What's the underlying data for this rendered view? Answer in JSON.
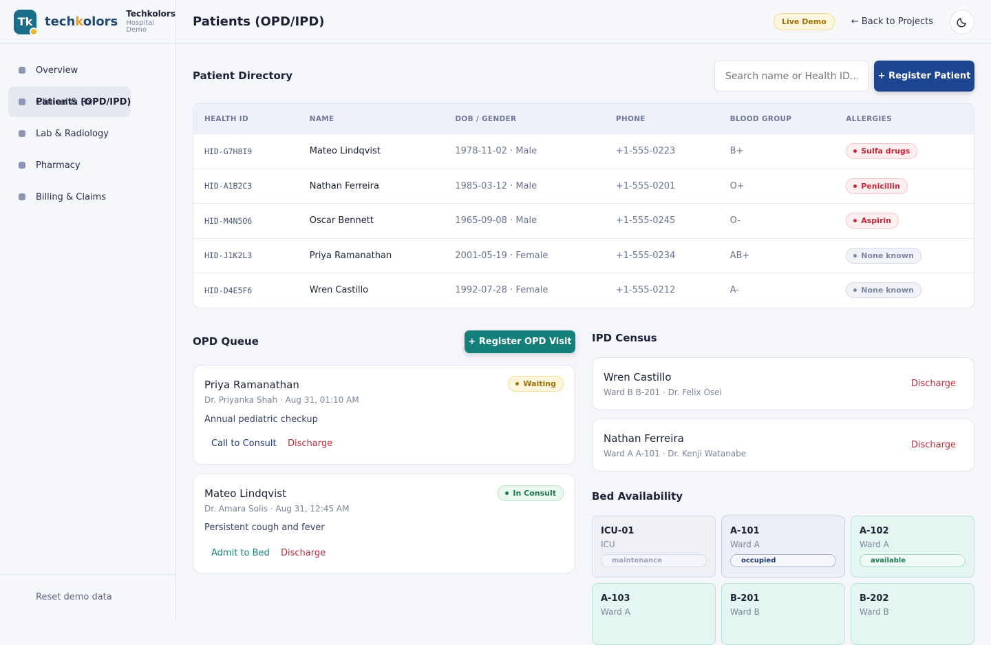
{
  "sidebar": {
    "logo": "Tk",
    "wordmark": [
      "tech",
      "k",
      "olors"
    ],
    "org": "Techkolors",
    "org_sub": "Hospital Demo",
    "nav": [
      "Overview",
      "Patients (OPD/IPD)",
      "Clinical & Rx",
      "Lab & Radiology",
      "Pharmacy",
      "Billing & Claims"
    ],
    "active": 1,
    "reset": "Reset demo data"
  },
  "header": {
    "title": "Patients (OPD/IPD)",
    "badge": "Live Demo",
    "back": "← Back to Projects"
  },
  "directory": {
    "title": "Patient Directory",
    "search_placeholder": "Search name or Health ID...",
    "register": "+ Register Patient",
    "columns": [
      "HEALTH ID",
      "NAME",
      "DOB / GENDER",
      "PHONE",
      "BLOOD GROUP",
      "ALLERGIES"
    ],
    "rows": [
      [
        "HID-G7H8I9",
        "Mateo Lindqvist",
        "1978-11-02 · Male",
        "+1-555-0223",
        "B+",
        "Sulfa drugs"
      ],
      [
        "HID-A1B2C3",
        "Nathan Ferreira",
        "1985-03-12 · Male",
        "+1-555-0201",
        "O+",
        "Penicillin"
      ],
      [
        "HID-M4N5O6",
        "Oscar Bennett",
        "1965-09-08 · Male",
        "+1-555-0245",
        "O-",
        "Aspirin"
      ],
      [
        "HID-J1K2L3",
        "Priya Ramanathan",
        "2001-05-19 · Female",
        "+1-555-0234",
        "AB+",
        "None known"
      ],
      [
        "HID-D4E5F6",
        "Wren Castillo",
        "1992-07-28 · Female",
        "+1-555-0212",
        "A-",
        "None known"
      ]
    ]
  },
  "opd": {
    "title": "OPD Queue",
    "register": "+ Register OPD Visit",
    "cards": [
      {
        "name": "Priya Ramanathan",
        "meta": "Dr. Priyanka Shah · Aug 31, 01:10 AM",
        "status": "Waiting",
        "reason": "Annual pediatric checkup",
        "actions": [
          "Call to Consult",
          "Discharge"
        ]
      },
      {
        "name": "Mateo Lindqvist",
        "meta": "Dr. Amara Solis · Aug 31, 12:45 AM",
        "status": "In Consult",
        "reason": "Persistent cough and fever",
        "actions": [
          "Admit to Bed",
          "Discharge"
        ]
      }
    ]
  },
  "ipd": {
    "title": "IPD Census",
    "cards": [
      {
        "name": "Wren Castillo",
        "meta": "Ward B B-201 · Dr. Felix Osei",
        "action": "Discharge"
      },
      {
        "name": "Nathan Ferreira",
        "meta": "Ward A A-101 · Dr. Kenji Watanabe",
        "action": "Discharge"
      }
    ]
  },
  "beds": {
    "title": "Bed Availability",
    "items": [
      {
        "id": "ICU-01",
        "ward": "ICU",
        "status": "maintenance"
      },
      {
        "id": "A-101",
        "ward": "Ward A",
        "status": "occupied"
      },
      {
        "id": "A-102",
        "ward": "Ward A",
        "status": "available"
      },
      {
        "id": "A-103",
        "ward": "Ward A"
      },
      {
        "id": "B-201",
        "ward": "Ward B"
      },
      {
        "id": "B-202",
        "ward": "Ward B"
      }
    ]
  }
}
